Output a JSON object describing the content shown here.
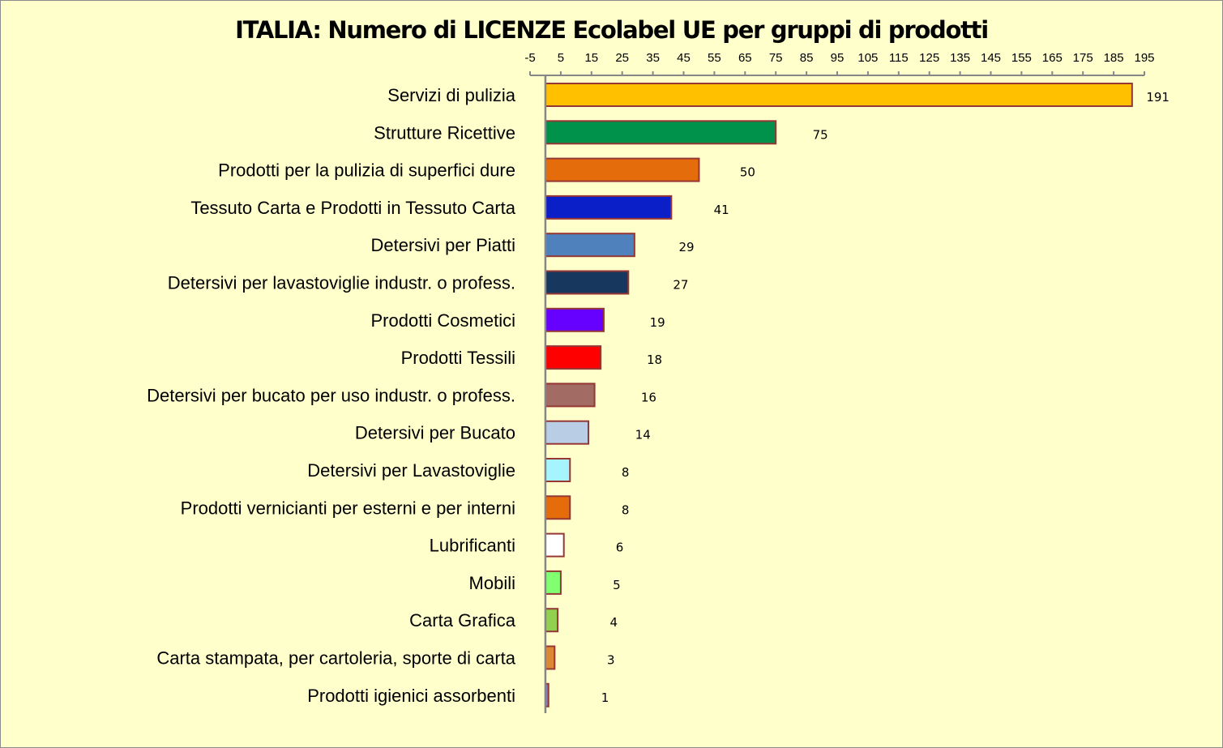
{
  "chart_data": {
    "type": "bar",
    "orientation": "horizontal",
    "title": "ITALIA: Numero di LICENZE  Ecolabel UE per gruppi di prodotti",
    "xlim": [
      -5,
      195
    ],
    "x_ticks": [
      -5,
      5,
      15,
      25,
      35,
      45,
      55,
      65,
      75,
      85,
      95,
      105,
      115,
      125,
      135,
      145,
      155,
      165,
      175,
      185,
      195
    ],
    "x_axis_position": "top",
    "grid": false,
    "categories": [
      "Servizi di pulizia",
      "Strutture Ricettive",
      "Prodotti per la pulizia di superfici dure",
      "Tessuto Carta e Prodotti in Tessuto Carta",
      "Detersivi per Piatti",
      "Detersivi per lavastoviglie industr. o profess.",
      "Prodotti Cosmetici",
      "Prodotti Tessili ",
      "Detersivi per bucato per uso industr. o profess.",
      "Detersivi per Bucato",
      "Detersivi per Lavastoviglie",
      "Prodotti vernicianti per esterni e per interni",
      "Lubrificanti",
      "Mobili",
      "Carta Grafica ",
      "Carta stampata, per cartoleria, sporte di carta",
      "Prodotti igienici assorbenti"
    ],
    "values": [
      191,
      75,
      50,
      41,
      29,
      27,
      19,
      18,
      16,
      14,
      8,
      8,
      6,
      5,
      4,
      3,
      1
    ],
    "colors": [
      "#FFC000",
      "#00914A",
      "#E46C0A",
      "#0A1FC8",
      "#4F81BD",
      "#17375E",
      "#6600FF",
      "#FF0000",
      "#A26B63",
      "#B9CDE5",
      "#A6F4FF",
      "#E46C0A",
      "#FFFFFF",
      "#80FF70",
      "#92D050",
      "#DD8833",
      "#7F7FBF"
    ],
    "bar_border_color": "#953735",
    "background_color": "#FFFFCC"
  }
}
